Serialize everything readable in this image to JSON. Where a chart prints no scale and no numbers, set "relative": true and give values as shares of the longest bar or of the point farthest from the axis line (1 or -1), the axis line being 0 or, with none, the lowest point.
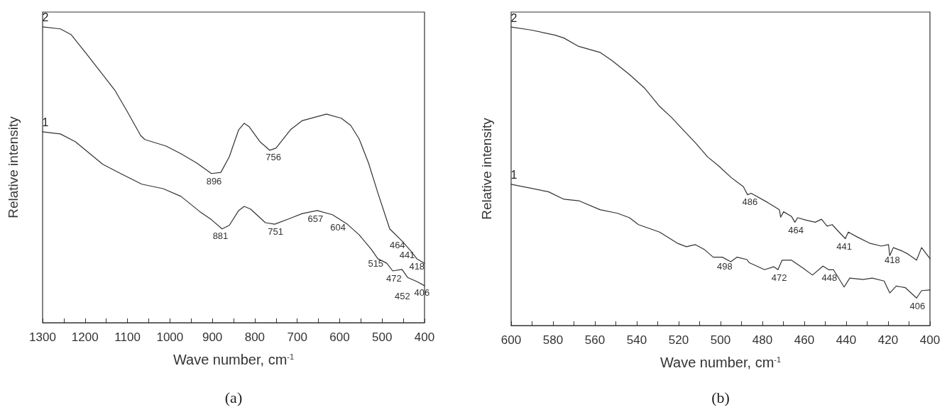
{
  "chart_data": [
    {
      "type": "line",
      "relative": true,
      "xlabel": "Wave number, cm$^{-1}$",
      "ylabel": "Relative intensity",
      "grid": false,
      "legend": false,
      "marker": "none",
      "line_style": "solid",
      "xlim": [
        1300,
        400
      ],
      "xticks": [
        1300,
        {
          "value": 1250,
          "label": null
        },
        1200,
        {
          "value": 1150,
          "label": null
        },
        1100,
        {
          "value": 1050,
          "label": null
        },
        1000,
        {
          "value": 950,
          "label": null
        },
        900,
        {
          "value": 850,
          "label": null
        },
        800,
        {
          "value": 750,
          "label": null
        },
        700,
        {
          "value": 650,
          "label": null
        },
        600,
        {
          "value": 550,
          "label": null
        },
        500,
        {
          "value": 450,
          "label": null
        },
        400
      ],
      "series": [
        {
          "name": "1",
          "color": "#333333",
          "x": [
            1300,
            1258,
            1223,
            1158,
            1116,
            1066,
            1016,
            974,
            930,
            902,
            877,
            860,
            838,
            825,
            810,
            775,
            753,
            716,
            688,
            653,
            617,
            582,
            554,
            525,
            510,
            489,
            475,
            453,
            440,
            418,
            400
          ],
          "values": [
            0.645,
            0.638,
            0.612,
            0.535,
            0.504,
            0.468,
            0.453,
            0.427,
            0.376,
            0.348,
            0.317,
            0.329,
            0.379,
            0.393,
            0.384,
            0.338,
            0.333,
            0.353,
            0.369,
            0.379,
            0.365,
            0.333,
            0.297,
            0.247,
            0.216,
            0.201,
            0.175,
            0.18,
            0.153,
            0.139,
            0.125
          ]
        },
        {
          "name": "2",
          "color": "#333333",
          "x": [
            1300,
            1258,
            1233,
            1195,
            1151,
            1129,
            1101,
            1069,
            1059,
            1009,
            974,
            937,
            902,
            880,
            860,
            838,
            825,
            813,
            788,
            765,
            750,
            716,
            688,
            631,
            596,
            574,
            554,
            532,
            510,
            482,
            453,
            432,
            418,
            400
          ],
          "values": [
            1.0,
            0.993,
            0.974,
            0.906,
            0.825,
            0.784,
            0.715,
            0.633,
            0.619,
            0.597,
            0.571,
            0.54,
            0.504,
            0.508,
            0.561,
            0.652,
            0.674,
            0.662,
            0.612,
            0.583,
            0.59,
            0.652,
            0.683,
            0.705,
            0.691,
            0.667,
            0.621,
            0.54,
            0.439,
            0.317,
            0.276,
            0.242,
            0.216,
            0.201
          ]
        }
      ],
      "annotations": [
        {
          "text": "896",
          "x": 896,
          "y": 0.505
        },
        {
          "text": "756",
          "x": 756,
          "y": 0.587
        },
        {
          "text": "881",
          "x": 881,
          "y": 0.32
        },
        {
          "text": "751",
          "x": 751,
          "y": 0.334
        },
        {
          "text": "657",
          "x": 657,
          "y": 0.378
        },
        {
          "text": "604",
          "x": 604,
          "y": 0.35
        },
        {
          "text": "515",
          "x": 515,
          "y": 0.226
        },
        {
          "text": "472",
          "x": 472,
          "y": 0.176
        },
        {
          "text": "452",
          "x": 452,
          "y": 0.178
        },
        {
          "text": "406",
          "x": 406,
          "y": 0.129
        },
        {
          "text": "464",
          "x": 464,
          "y": 0.29
        },
        {
          "text": "441",
          "x": 441,
          "y": 0.255
        },
        {
          "text": "418",
          "x": 418,
          "y": 0.216
        },
        "(a)"
      ]
    },
    {
      "type": "line",
      "relative": true,
      "xlabel": "Wave number, cm$^{-1}$",
      "ylabel": "Relative intensity",
      "grid": false,
      "legend": false,
      "marker": "none",
      "line_style": "solid",
      "xlim": [
        600,
        400
      ],
      "xticks": [
        600,
        {
          "value": 590,
          "label": null
        },
        580,
        {
          "value": 570,
          "label": null
        },
        560,
        {
          "value": 550,
          "label": null
        },
        540,
        {
          "value": 530,
          "label": null
        },
        520,
        {
          "value": 510,
          "label": null
        },
        500,
        {
          "value": 490,
          "label": null
        },
        480,
        {
          "value": 470,
          "label": null
        },
        460,
        {
          "value": 450,
          "label": null
        },
        440,
        {
          "value": 430,
          "label": null
        },
        420,
        {
          "value": 410,
          "label": null
        },
        400
      ],
      "series": [
        {
          "name": "1",
          "color": "#333333",
          "x": [
            600,
            582.2,
            574.8,
            567.7,
            557.6,
            549.2,
            543.5,
            539.2,
            529.1,
            520.7,
            516.3,
            512.0,
            507.6,
            503.5,
            499.2,
            495.1,
            492.1,
            487.4,
            486.4,
            479.0,
            474.6,
            472.6,
            470.6,
            466.2,
            460.5,
            456.1,
            451.1,
            448.4,
            446.1,
            441.0,
            438.3,
            431.9,
            427.6,
            421.9,
            419.2,
            416.1,
            411.8,
            406.4,
            404.0,
            400
          ],
          "values": [
            0.473,
            0.448,
            0.423,
            0.418,
            0.388,
            0.376,
            0.361,
            0.338,
            0.313,
            0.276,
            0.264,
            0.271,
            0.254,
            0.229,
            0.229,
            0.214,
            0.229,
            0.221,
            0.211,
            0.187,
            0.197,
            0.187,
            0.219,
            0.219,
            0.192,
            0.169,
            0.199,
            0.187,
            0.187,
            0.129,
            0.159,
            0.154,
            0.159,
            0.149,
            0.109,
            0.132,
            0.127,
            0.092,
            0.117,
            0.119
          ]
        },
        {
          "name": "2",
          "color": "#333333",
          "x": [
            600,
            590.6,
            579.2,
            574.8,
            567.7,
            557.6,
            551.9,
            543.5,
            536.1,
            529.1,
            523.4,
            517.7,
            512.0,
            506.2,
            500.5,
            494.8,
            489.1,
            487.1,
            485.4,
            477.7,
            471.9,
            471.3,
            469.9,
            466.2,
            464.5,
            463.2,
            459.2,
            454.8,
            451.8,
            449.1,
            446.7,
            443.4,
            440.4,
            439.0,
            434.6,
            428.9,
            423.2,
            419.8,
            419.2,
            417.5,
            413.1,
            410.4,
            406.4,
            404.0,
            400
          ],
          "values": [
            1.0,
            0.99,
            0.973,
            0.963,
            0.935,
            0.915,
            0.888,
            0.841,
            0.794,
            0.734,
            0.697,
            0.654,
            0.612,
            0.565,
            0.532,
            0.495,
            0.465,
            0.438,
            0.443,
            0.413,
            0.388,
            0.363,
            0.381,
            0.366,
            0.346,
            0.361,
            0.353,
            0.346,
            0.356,
            0.333,
            0.338,
            0.313,
            0.291,
            0.313,
            0.296,
            0.276,
            0.266,
            0.271,
            0.234,
            0.261,
            0.249,
            0.239,
            0.219,
            0.261,
            0.224
          ]
        }
      ],
      "annotations": [
        {
          "text": "486",
          "x": 486,
          "y": 0.44
        },
        {
          "text": "464",
          "x": 464,
          "y": 0.346
        },
        {
          "text": "441",
          "x": 441,
          "y": 0.291
        },
        {
          "text": "418",
          "x": 418,
          "y": 0.245
        },
        {
          "text": "498",
          "x": 498,
          "y": 0.225
        },
        {
          "text": "472",
          "x": 472,
          "y": 0.187
        },
        {
          "text": "448",
          "x": 448,
          "y": 0.187
        },
        {
          "text": "406",
          "x": 406,
          "y": 0.092
        },
        "(b)"
      ]
    }
  ]
}
